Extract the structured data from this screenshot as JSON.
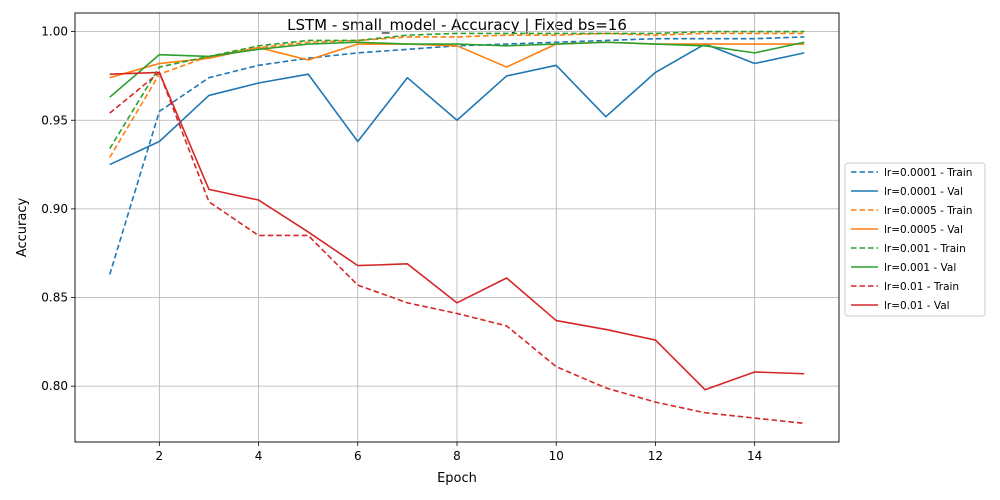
{
  "chart_data": {
    "type": "line",
    "title": "LSTM - small_model - Accuracy | Fixed bs=16",
    "xlabel": "Epoch",
    "ylabel": "Accuracy",
    "xlim": [
      0.3,
      15.7
    ],
    "ylim": [
      0.7685,
      1.0105
    ],
    "xticks": [
      2,
      4,
      6,
      8,
      10,
      12,
      14
    ],
    "yticks": [
      0.8,
      0.85,
      0.9,
      0.95,
      1.0
    ],
    "ytick_labels": [
      "0.80",
      "0.85",
      "0.90",
      "0.95",
      "1.00"
    ],
    "grid": true,
    "legend_position": "center-right-outside",
    "x": [
      1,
      2,
      3,
      4,
      5,
      6,
      7,
      8,
      9,
      10,
      11,
      12,
      13,
      14,
      15
    ],
    "series": [
      {
        "name": "lr=0.0001 - Train",
        "color": "#1f77b4",
        "dash": true,
        "values": [
          0.863,
          0.955,
          0.974,
          0.981,
          0.985,
          0.988,
          0.99,
          0.992,
          0.993,
          0.994,
          0.995,
          0.996,
          0.996,
          0.996,
          0.997
        ]
      },
      {
        "name": "lr=0.0001 - Val",
        "color": "#1f77b4",
        "dash": false,
        "values": [
          0.925,
          0.938,
          0.964,
          0.971,
          0.976,
          0.938,
          0.974,
          0.95,
          0.975,
          0.981,
          0.952,
          0.977,
          0.993,
          0.982,
          0.988
        ]
      },
      {
        "name": "lr=0.0005 - Train",
        "color": "#ff7f0e",
        "dash": true,
        "values": [
          0.929,
          0.976,
          0.986,
          0.991,
          0.994,
          0.995,
          0.997,
          0.997,
          0.998,
          0.998,
          0.999,
          0.998,
          0.999,
          0.999,
          0.999
        ]
      },
      {
        "name": "lr=0.0005 - Val",
        "color": "#ff7f0e",
        "dash": false,
        "values": [
          0.974,
          0.982,
          0.985,
          0.991,
          0.984,
          0.993,
          0.993,
          0.992,
          0.98,
          0.993,
          0.994,
          0.993,
          0.993,
          0.993,
          0.993
        ]
      },
      {
        "name": "lr=0.001 - Train",
        "color": "#2ca02c",
        "dash": true,
        "values": [
          0.934,
          0.98,
          0.986,
          0.992,
          0.995,
          0.995,
          0.998,
          0.999,
          0.999,
          0.999,
          0.999,
          0.999,
          1.0,
          1.0,
          1.0
        ]
      },
      {
        "name": "lr=0.001 - Val",
        "color": "#2ca02c",
        "dash": false,
        "values": [
          0.963,
          0.987,
          0.986,
          0.99,
          0.993,
          0.994,
          0.993,
          0.993,
          0.992,
          0.993,
          0.994,
          0.993,
          0.992,
          0.988,
          0.994
        ]
      },
      {
        "name": "lr=0.01 - Train",
        "color": "#d62728",
        "dash": true,
        "values": [
          0.954,
          0.977,
          0.904,
          0.885,
          0.885,
          0.857,
          0.847,
          0.841,
          0.834,
          0.811,
          0.799,
          0.791,
          0.785,
          0.782,
          0.779
        ]
      },
      {
        "name": "lr=0.01 - Val",
        "color": "#d62728",
        "dash": false,
        "values": [
          0.976,
          0.977,
          0.911,
          0.905,
          0.887,
          0.868,
          0.869,
          0.847,
          0.861,
          0.837,
          0.832,
          0.826,
          0.798,
          0.808,
          0.807
        ]
      }
    ]
  }
}
